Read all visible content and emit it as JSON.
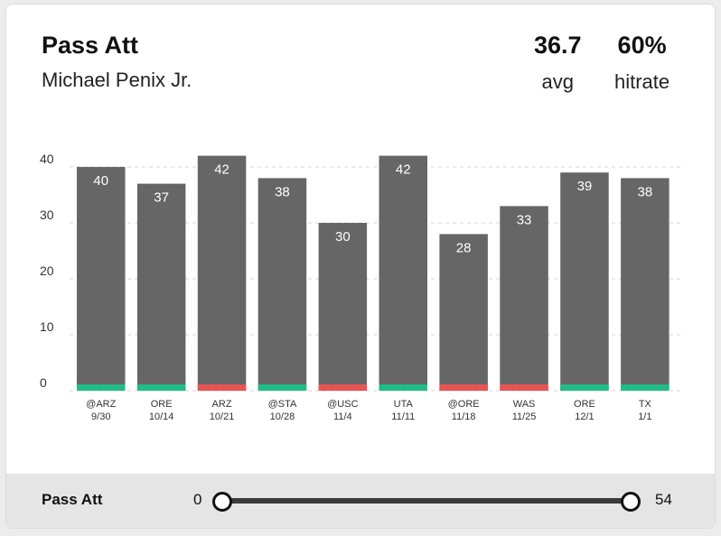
{
  "header": {
    "title": "Pass Att",
    "player": "Michael Penix Jr.",
    "avg_value": "36.7",
    "avg_label": "avg",
    "hitrate_value": "60%",
    "hitrate_label": "hitrate"
  },
  "footer": {
    "label": "Pass Att",
    "range_min": "0",
    "range_max": "54"
  },
  "colors": {
    "bar": "#666666",
    "hit": "#1fbd84",
    "miss": "#e85454"
  },
  "chart_data": {
    "type": "bar",
    "categories": [
      {
        "opp": "@ARZ",
        "date": "9/30"
      },
      {
        "opp": "ORE",
        "date": "10/14"
      },
      {
        "opp": "ARZ",
        "date": "10/21"
      },
      {
        "opp": "@STA",
        "date": "10/28"
      },
      {
        "opp": "@USC",
        "date": "11/4"
      },
      {
        "opp": "UTA",
        "date": "11/11"
      },
      {
        "opp": "@ORE",
        "date": "11/18"
      },
      {
        "opp": "WAS",
        "date": "11/25"
      },
      {
        "opp": "ORE",
        "date": "12/1"
      },
      {
        "opp": "TX",
        "date": "1/1"
      }
    ],
    "values": [
      40,
      37,
      42,
      38,
      30,
      42,
      28,
      33,
      39,
      38
    ],
    "outcome": [
      "hit",
      "hit",
      "miss",
      "hit",
      "miss",
      "hit",
      "miss",
      "miss",
      "hit",
      "hit"
    ],
    "yticks": [
      0,
      10,
      20,
      30,
      40
    ],
    "ylim": [
      0,
      42
    ],
    "grid": true
  }
}
